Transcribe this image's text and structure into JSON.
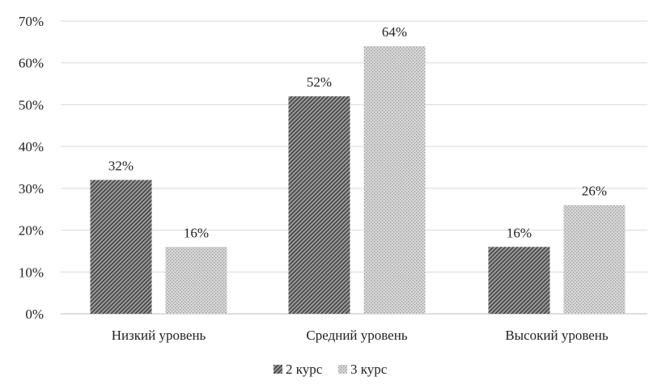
{
  "chart_data": {
    "type": "bar",
    "categories": [
      "Низкий уровень",
      "Средний уровень",
      "Высокий уровень"
    ],
    "series": [
      {
        "name": "2 курс",
        "values": [
          32,
          52,
          16
        ],
        "labels": [
          "32%",
          "52%",
          "16%"
        ],
        "pattern": "diagonal-hatch",
        "color": "#555555"
      },
      {
        "name": "3 курс",
        "values": [
          16,
          64,
          26
        ],
        "labels": [
          "16%",
          "64%",
          "26%"
        ],
        "pattern": "crosshatch",
        "color": "#aaaaaa"
      }
    ],
    "y_ticks": [
      {
        "value": 0,
        "label": "0%"
      },
      {
        "value": 10,
        "label": "10%"
      },
      {
        "value": 20,
        "label": "20%"
      },
      {
        "value": 30,
        "label": "30%"
      },
      {
        "value": 40,
        "label": "40%"
      },
      {
        "value": 50,
        "label": "50%"
      },
      {
        "value": 60,
        "label": "60%"
      },
      {
        "value": 70,
        "label": "70%"
      }
    ],
    "ylim": [
      0,
      70
    ],
    "grid": true,
    "legend_position": "bottom",
    "title": "",
    "xlabel": "",
    "ylabel": ""
  }
}
